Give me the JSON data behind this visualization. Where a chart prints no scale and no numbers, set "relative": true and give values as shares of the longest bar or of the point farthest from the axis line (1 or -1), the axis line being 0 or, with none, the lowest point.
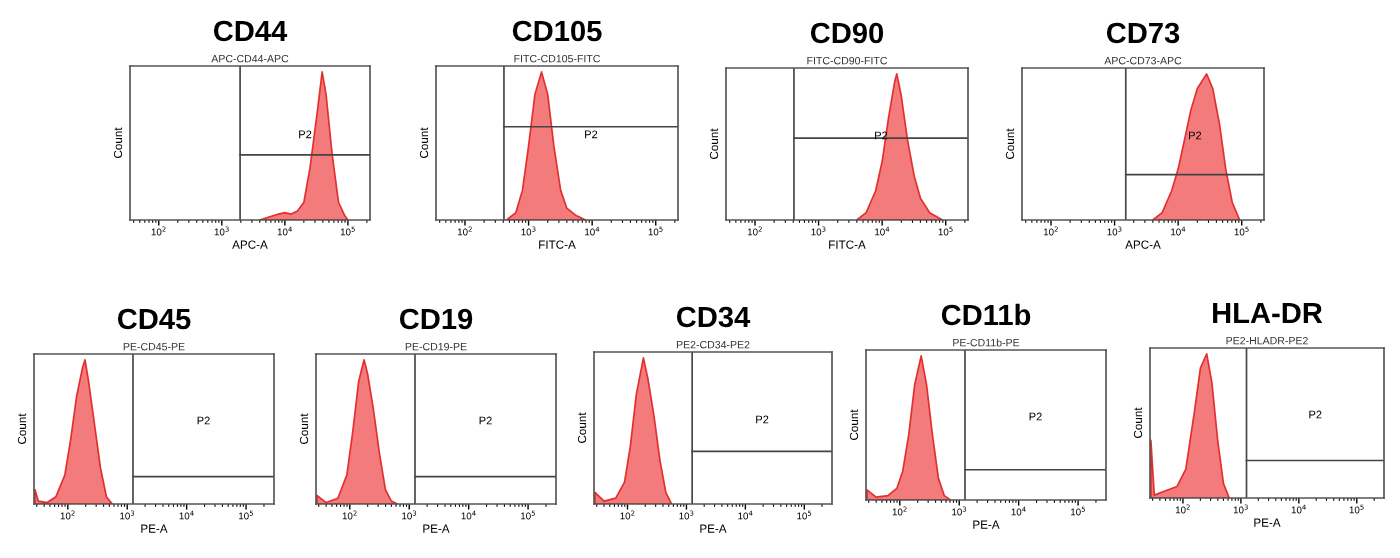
{
  "chart_data": [
    {
      "type": "area",
      "relative": true,
      "title": "CD44",
      "subtitle": "APC-CD44-APC",
      "xlabel": "APC-A",
      "ylabel": "Count",
      "log": "x",
      "tick_labels": "x",
      "xlim": [
        35,
        224000
      ],
      "xticks": [
        {
          "value": 100,
          "label": "10$^{2}$"
        },
        {
          "value": 1000,
          "label": "10$^{3}$"
        },
        {
          "value": 10000,
          "label": "10$^{4}$"
        },
        {
          "value": 100000,
          "label": "10$^{5}$"
        }
      ],
      "series": [
        {
          "color": "#f26d6d",
          "x": [
            4000,
            5600,
            7900,
            10000,
            12600,
            15800,
            20000,
            25000,
            32000,
            39000,
            45000,
            56000,
            71000,
            89000,
            100000
          ],
          "values": [
            0,
            0.02,
            0.04,
            0.05,
            0.04,
            0.06,
            0.12,
            0.35,
            0.7,
            1,
            0.85,
            0.45,
            0.12,
            0.03,
            0
          ]
        }
      ],
      "ref_lines": [
        {
          "axis": "x",
          "value": 1950
        },
        {
          "axis": "y",
          "value": 0.44
        }
      ],
      "annotations": [
        "P2"
      ]
    },
    {
      "type": "area",
      "relative": true,
      "title": "CD105",
      "subtitle": "FITC-CD105-FITC",
      "xlabel": "FITC-A",
      "ylabel": "Count",
      "log": "x",
      "tick_labels": "x",
      "xlim": [
        35,
        224000
      ],
      "xticks": [
        {
          "value": 100,
          "label": "10$^{2}$"
        },
        {
          "value": 1000,
          "label": "10$^{3}$"
        },
        {
          "value": 10000,
          "label": "10$^{4}$"
        },
        {
          "value": 100000,
          "label": "10$^{5}$"
        }
      ],
      "series": [
        {
          "color": "#f26d6d",
          "x": [
            450,
            630,
            800,
            1000,
            1260,
            1600,
            2000,
            2500,
            3200,
            4000,
            5600,
            7900
          ],
          "values": [
            0,
            0.05,
            0.2,
            0.5,
            0.85,
            1,
            0.85,
            0.5,
            0.2,
            0.08,
            0.03,
            0
          ]
        }
      ],
      "ref_lines": [
        {
          "axis": "x",
          "value": 410
        },
        {
          "axis": "y",
          "value": 0.63
        }
      ],
      "annotations": [
        "P2"
      ]
    },
    {
      "type": "area",
      "relative": true,
      "title": "CD90",
      "subtitle": "FITC-CD90-FITC",
      "xlabel": "FITC-A",
      "ylabel": "Count",
      "log": "x",
      "tick_labels": "x",
      "xlim": [
        35,
        224000
      ],
      "xticks": [
        {
          "value": 100,
          "label": "10$^{2}$"
        },
        {
          "value": 1000,
          "label": "10$^{3}$"
        },
        {
          "value": 10000,
          "label": "10$^{4}$"
        },
        {
          "value": 100000,
          "label": "10$^{5}$"
        }
      ],
      "series": [
        {
          "color": "#f26d6d",
          "x": [
            4000,
            5600,
            7900,
            10000,
            12600,
            15800,
            17000,
            20000,
            25000,
            32000,
            40000,
            56000,
            89000
          ],
          "values": [
            0,
            0.05,
            0.2,
            0.4,
            0.7,
            0.95,
            1,
            0.85,
            0.55,
            0.3,
            0.15,
            0.05,
            0
          ]
        }
      ],
      "ref_lines": [
        {
          "axis": "x",
          "value": 410
        },
        {
          "axis": "y",
          "value": 0.56
        }
      ],
      "annotations": [
        "P2"
      ]
    },
    {
      "type": "area",
      "relative": true,
      "title": "CD73",
      "subtitle": "APC-CD73-APC",
      "xlabel": "APC-A",
      "ylabel": "Count",
      "log": "x",
      "tick_labels": "x",
      "xlim": [
        35,
        224000
      ],
      "xticks": [
        {
          "value": 100,
          "label": "10$^{2}$"
        },
        {
          "value": 1000,
          "label": "10$^{3}$"
        },
        {
          "value": 10000,
          "label": "10$^{4}$"
        },
        {
          "value": 100000,
          "label": "10$^{5}$"
        }
      ],
      "series": [
        {
          "color": "#f26d6d",
          "x": [
            4000,
            5600,
            7900,
            10000,
            12600,
            15800,
            20000,
            28000,
            35000,
            45000,
            56000,
            71000,
            93000
          ],
          "values": [
            0,
            0.05,
            0.2,
            0.35,
            0.55,
            0.75,
            0.9,
            1,
            0.9,
            0.65,
            0.35,
            0.12,
            0
          ]
        }
      ],
      "ref_lines": [
        {
          "axis": "x",
          "value": 1500
        },
        {
          "axis": "y",
          "value": 0.31
        }
      ],
      "annotations": [
        "P2"
      ]
    },
    {
      "type": "area",
      "relative": true,
      "title": "CD45",
      "subtitle": "PE-CD45-PE",
      "xlabel": "PE-A",
      "ylabel": "Count",
      "log": "x",
      "tick_labels": "x",
      "xlim": [
        27,
        295000
      ],
      "xticks": [
        {
          "value": 100,
          "label": "10$^{2}$"
        },
        {
          "value": 1000,
          "label": "10$^{3}$"
        },
        {
          "value": 10000,
          "label": "10$^{4}$"
        },
        {
          "value": 100000,
          "label": "10$^{5}$"
        }
      ],
      "series": [
        {
          "color": "#f26d6d",
          "x": [
            28,
            32,
            45,
            63,
            89,
            112,
            141,
            178,
            195,
            224,
            282,
            355,
            447,
            562
          ],
          "values": [
            0.1,
            0.02,
            0.01,
            0.05,
            0.2,
            0.45,
            0.75,
            0.95,
            1,
            0.85,
            0.55,
            0.25,
            0.05,
            0
          ]
        }
      ],
      "ref_lines": [
        {
          "axis": "x",
          "value": 1250
        },
        {
          "axis": "y",
          "value": 0.19
        }
      ],
      "annotations": [
        "P2"
      ]
    },
    {
      "type": "area",
      "relative": true,
      "title": "CD19",
      "subtitle": "PE-CD19-PE",
      "xlabel": "PE-A",
      "ylabel": "Count",
      "log": "x",
      "tick_labels": "x",
      "xlim": [
        27,
        295000
      ],
      "xticks": [
        {
          "value": 100,
          "label": "10$^{2}$"
        },
        {
          "value": 1000,
          "label": "10$^{3}$"
        },
        {
          "value": 10000,
          "label": "10$^{4}$"
        },
        {
          "value": 100000,
          "label": "10$^{5}$"
        }
      ],
      "series": [
        {
          "color": "#f26d6d",
          "x": [
            28,
            40,
            63,
            89,
            112,
            141,
            174,
            200,
            251,
            316,
            398,
            501,
            631
          ],
          "values": [
            0.06,
            0.01,
            0.04,
            0.2,
            0.5,
            0.85,
            1,
            0.9,
            0.65,
            0.35,
            0.1,
            0.02,
            0
          ]
        }
      ],
      "ref_lines": [
        {
          "axis": "x",
          "value": 1250
        },
        {
          "axis": "y",
          "value": 0.19
        }
      ],
      "annotations": [
        "P2"
      ]
    },
    {
      "type": "area",
      "relative": true,
      "title": "CD34",
      "subtitle": "PE2-CD34-PE2",
      "xlabel": "PE-A",
      "ylabel": "Count",
      "log": "x",
      "tick_labels": "x",
      "xlim": [
        27,
        295000
      ],
      "xticks": [
        {
          "value": 100,
          "label": "10$^{2}$"
        },
        {
          "value": 1000,
          "label": "10$^{3}$"
        },
        {
          "value": 10000,
          "label": "10$^{4}$"
        },
        {
          "value": 100000,
          "label": "10$^{5}$"
        }
      ],
      "series": [
        {
          "color": "#f26d6d",
          "x": [
            28,
            40,
            63,
            89,
            112,
            141,
            186,
            224,
            282,
            355,
            447,
            562
          ],
          "values": [
            0.08,
            0.02,
            0.04,
            0.15,
            0.4,
            0.75,
            1,
            0.85,
            0.6,
            0.3,
            0.08,
            0
          ]
        }
      ],
      "ref_lines": [
        {
          "axis": "x",
          "value": 1250
        },
        {
          "axis": "y",
          "value": 0.36
        }
      ],
      "annotations": [
        "P2"
      ]
    },
    {
      "type": "area",
      "relative": true,
      "title": "CD11b",
      "subtitle": "PE-CD11b-PE",
      "xlabel": "PE-A",
      "ylabel": "Count",
      "log": "x",
      "tick_labels": "x",
      "xlim": [
        27,
        295000
      ],
      "xticks": [
        {
          "value": 100,
          "label": "10$^{2}$"
        },
        {
          "value": 1000,
          "label": "10$^{3}$"
        },
        {
          "value": 10000,
          "label": "10$^{4}$"
        },
        {
          "value": 100000,
          "label": "10$^{5}$"
        }
      ],
      "series": [
        {
          "color": "#f26d6d",
          "x": [
            28,
            40,
            63,
            89,
            112,
            141,
            178,
            229,
            282,
            355,
            447,
            562,
            708
          ],
          "values": [
            0.07,
            0.02,
            0.03,
            0.08,
            0.2,
            0.45,
            0.8,
            1,
            0.8,
            0.45,
            0.15,
            0.03,
            0
          ]
        }
      ],
      "ref_lines": [
        {
          "axis": "x",
          "value": 1250
        },
        {
          "axis": "y",
          "value": 0.21
        }
      ],
      "annotations": [
        "P2"
      ]
    },
    {
      "type": "area",
      "relative": true,
      "title": "HLA-DR",
      "subtitle": "PE2-HLADR-PE2",
      "xlabel": "PE-A",
      "ylabel": "Count",
      "log": "x",
      "tick_labels": "x",
      "xlim": [
        27,
        295000
      ],
      "xticks": [
        {
          "value": 100,
          "label": "10$^{2}$"
        },
        {
          "value": 1000,
          "label": "10$^{3}$"
        },
        {
          "value": 10000,
          "label": "10$^{4}$"
        },
        {
          "value": 100000,
          "label": "10$^{5}$"
        }
      ],
      "series": [
        {
          "color": "#f26d6d",
          "x": [
            28,
            32,
            50,
            79,
            112,
            158,
            200,
            257,
            316,
            398,
            501,
            631
          ],
          "values": [
            0.4,
            0.02,
            0.05,
            0.08,
            0.2,
            0.6,
            0.9,
            1,
            0.8,
            0.4,
            0.1,
            0
          ]
        }
      ],
      "ref_lines": [
        {
          "axis": "x",
          "value": 1250
        },
        {
          "axis": "y",
          "value": 0.26
        }
      ],
      "annotations": [
        "P2"
      ]
    }
  ]
}
